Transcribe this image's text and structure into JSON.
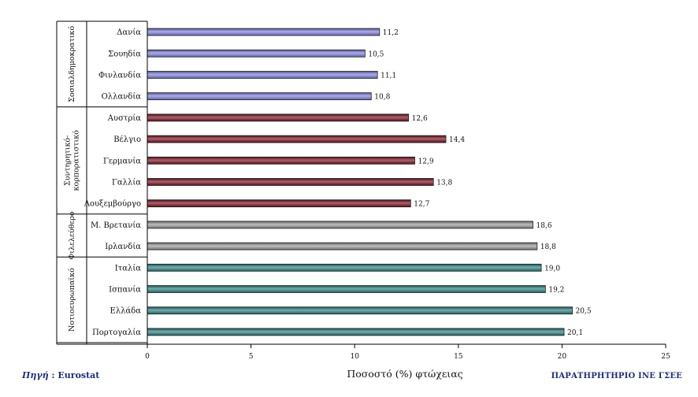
{
  "chart_data": {
    "type": "bar",
    "orientation": "horizontal",
    "xlabel": "Ποσοστό (%) φτώχειας",
    "xlim": [
      0,
      25
    ],
    "xticks": [
      0,
      5,
      10,
      15,
      20,
      25
    ],
    "grid": false,
    "groups": [
      {
        "name": "Σοσιαλδημοκρατικό",
        "color": "#8080e0",
        "categories": [
          "Δανία",
          "Σουηδία",
          "Φινλανδία",
          "Ολλανδία"
        ],
        "values": [
          11.2,
          10.5,
          11.1,
          10.8
        ],
        "labels": [
          "11,2",
          "10,5",
          "11,1",
          "10,8"
        ]
      },
      {
        "name": "Συντηρητικό-κορπορατιστικό",
        "color": "#7a1020",
        "categories": [
          "Αυστρία",
          "Βέλγιο",
          "Γερμανία",
          "Γαλλία",
          "Λουξεμβούργο"
        ],
        "values": [
          12.6,
          14.4,
          12.9,
          13.8,
          12.7
        ],
        "labels": [
          "12,6",
          "14,4",
          "12,9",
          "13,8",
          "12,7"
        ]
      },
      {
        "name": "Φιλελεύθερο",
        "color": "#9a9a9a",
        "categories": [
          "Μ. Βρετανία",
          "Ιρλανδία"
        ],
        "values": [
          18.6,
          18.8
        ],
        "labels": [
          "18,6",
          "18,8"
        ]
      },
      {
        "name": "Νοτιοευρωπαϊκό",
        "color": "#2a8080",
        "categories": [
          "Ιταλία",
          "Ισπανία",
          "Ελλάδα",
          "Πορτογαλία"
        ],
        "values": [
          19.0,
          19.2,
          20.5,
          20.1
        ],
        "labels": [
          "19,0",
          "19,2",
          "20,5",
          "20,1"
        ]
      }
    ]
  },
  "source": {
    "label": "Πηγή",
    "value": ": Eurostat"
  },
  "footer": {
    "org": "ΠΑΡΑΤΗΡΗΤΗΡΙΟ ΙΝΕ ΓΣΕΕ"
  }
}
